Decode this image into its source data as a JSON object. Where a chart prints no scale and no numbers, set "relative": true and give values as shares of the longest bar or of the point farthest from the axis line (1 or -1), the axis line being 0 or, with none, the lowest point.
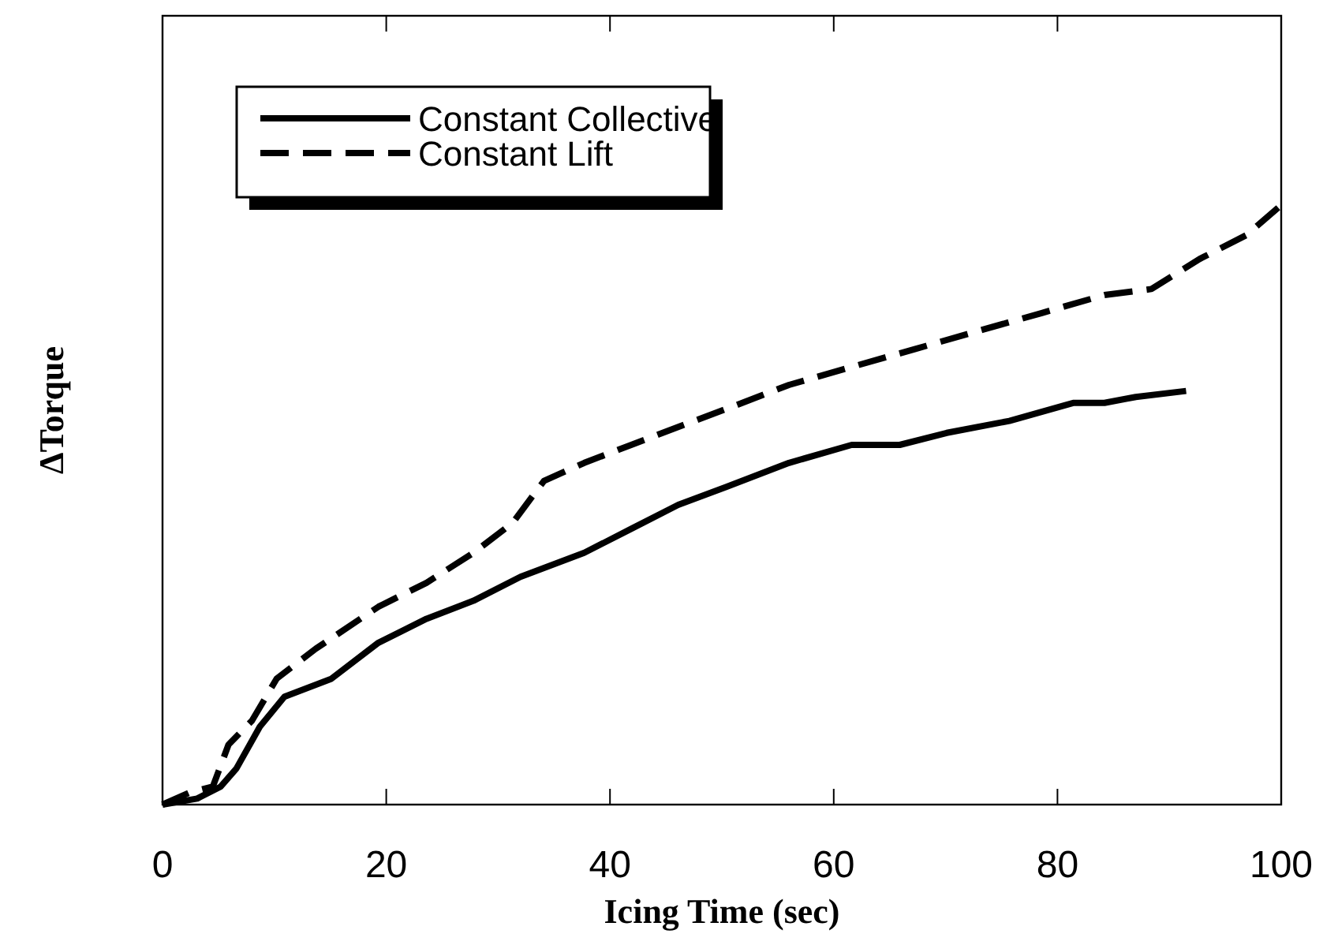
{
  "chart_data": {
    "type": "line",
    "relative": true,
    "xlabel": "Icing Time (sec)",
    "ylabel": "ΔTorque",
    "xlim": [
      0,
      100
    ],
    "xticks": [
      0,
      20,
      40,
      60,
      80,
      100
    ],
    "legend": "top left",
    "series": [
      {
        "name": "Constant Collective",
        "color": "#000000",
        "line_style": "solid",
        "x": [
          0,
          3.1,
          5.2,
          6.6,
          8.7,
          10.9,
          15.1,
          19.3,
          23.6,
          27.8,
          32.0,
          37.7,
          41.9,
          46.1,
          50.4,
          56.0,
          61.6,
          65.9,
          70.1,
          75.7,
          81.4,
          84.2,
          87.0,
          91.5
        ],
        "values": [
          0,
          0.01,
          0.03,
          0.06,
          0.13,
          0.18,
          0.21,
          0.27,
          0.31,
          0.34,
          0.38,
          0.42,
          0.46,
          0.5,
          0.53,
          0.57,
          0.6,
          0.6,
          0.62,
          0.64,
          0.67,
          0.67,
          0.68,
          0.69
        ]
      },
      {
        "name": "Constant Lift",
        "color": "#000000",
        "line_style": "dashed",
        "x": [
          0,
          2.4,
          4.5,
          5.9,
          8.0,
          10.2,
          13.7,
          19.3,
          23.6,
          27.8,
          31.3,
          34.1,
          37.7,
          41.9,
          46.1,
          50.4,
          56.0,
          61.6,
          67.3,
          72.9,
          78.6,
          84.2,
          88.4,
          92.7,
          96.9,
          100
        ],
        "values": [
          0,
          0.02,
          0.03,
          0.1,
          0.14,
          0.21,
          0.26,
          0.33,
          0.37,
          0.42,
          0.47,
          0.54,
          0.57,
          0.6,
          0.63,
          0.66,
          0.7,
          0.73,
          0.76,
          0.79,
          0.82,
          0.85,
          0.86,
          0.91,
          0.95,
          1
        ]
      }
    ]
  }
}
